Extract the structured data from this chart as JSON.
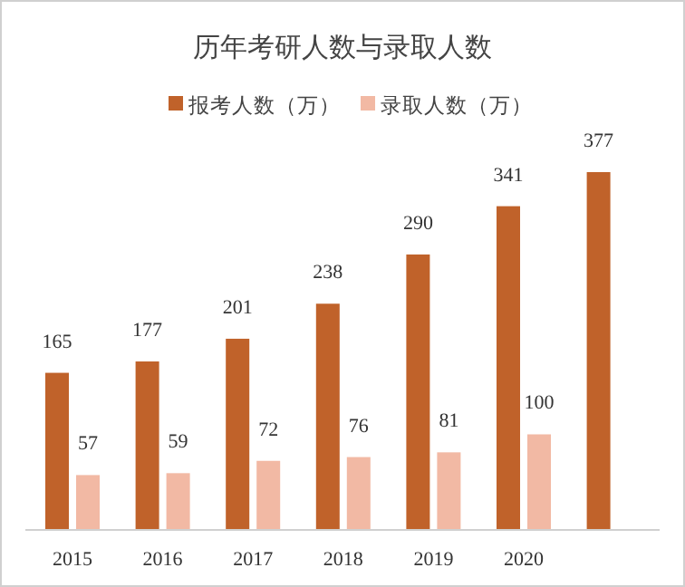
{
  "chart_data": {
    "type": "bar",
    "title": "历年考研人数与录取人数",
    "categories": [
      "2015",
      "2016",
      "2017",
      "2018",
      "2019",
      "2020",
      null
    ],
    "series": [
      {
        "name": "报考人数（万）",
        "color": "#c0622a",
        "values": [
          165,
          177,
          201,
          238,
          290,
          341,
          377
        ]
      },
      {
        "name": "录取人数（万）",
        "color": "#f2b9a4",
        "values": [
          57,
          59,
          72,
          76,
          81,
          100,
          null
        ]
      }
    ],
    "data_labels": true,
    "legend": "top"
  }
}
